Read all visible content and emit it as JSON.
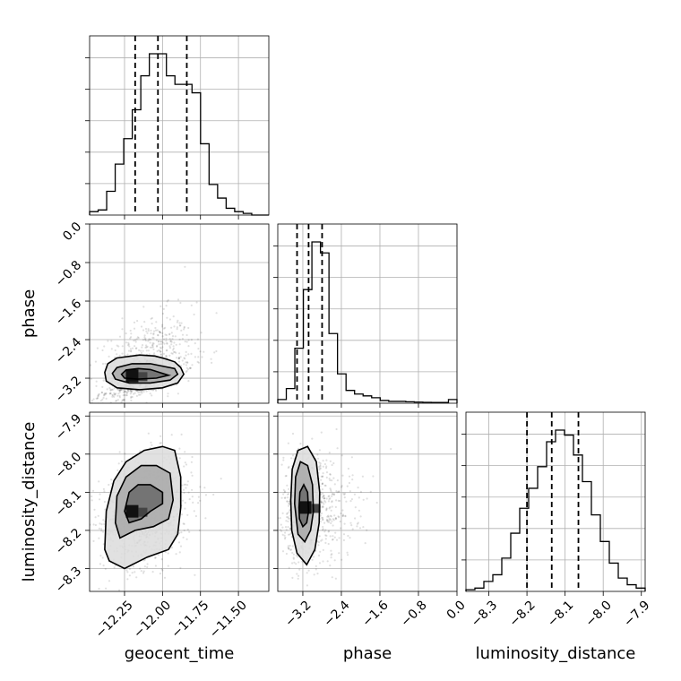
{
  "chart_data": {
    "type": "corner",
    "parameters": [
      "geocent_time",
      "phase",
      "luminosity_distance"
    ],
    "axes": {
      "geocent_time": {
        "label": "geocent_time",
        "range": [
          -12.48,
          -11.3
        ],
        "ticks": [
          -12.25,
          -12.0,
          -11.75,
          -11.5
        ],
        "tick_labels": [
          "−12.25",
          "−12.00",
          "−11.75",
          "−11.50"
        ],
        "quantiles": [
          -12.18,
          -12.03,
          -11.84
        ]
      },
      "phase": {
        "label": "phase",
        "range": [
          -3.72,
          0.0
        ],
        "ticks": [
          -3.2,
          -2.4,
          -1.6,
          -0.8,
          0.0
        ],
        "tick_labels": [
          "−3.2",
          "−2.4",
          "−1.6",
          "−0.8",
          "0.0"
        ],
        "quantiles": [
          -3.32,
          -3.08,
          -2.8
        ]
      },
      "luminosity_distance": {
        "label": "luminosity_distance",
        "range": [
          -8.36,
          -7.89
        ],
        "ticks": [
          -8.3,
          -8.2,
          -8.1,
          -8.0,
          -7.9
        ],
        "tick_labels": [
          "−8.3",
          "−8.2",
          "−8.1",
          "−8.0",
          "−7.9"
        ],
        "tick_labels_row": [
          "−8.3",
          "−8.2",
          "−8.1",
          "−8.0",
          "−7.9"
        ],
        "quantiles": [
          -8.2,
          -8.135,
          -8.065
        ]
      }
    },
    "histograms": {
      "geocent_time": {
        "bin_edges_range": [
          -12.48,
          -11.3
        ],
        "counts": [
          0.02,
          0.03,
          0.14,
          0.3,
          0.45,
          0.62,
          0.82,
          0.95,
          0.95,
          0.82,
          0.77,
          0.77,
          0.72,
          0.42,
          0.18,
          0.1,
          0.04,
          0.02,
          0.01,
          0,
          0
        ]
      },
      "phase": {
        "bin_edges_range": [
          -3.72,
          0.0
        ],
        "counts": [
          0.02,
          0.08,
          0.3,
          0.62,
          0.88,
          0.82,
          0.38,
          0.16,
          0.07,
          0.05,
          0.04,
          0.03,
          0.015,
          0.01,
          0.01,
          0.008,
          0.006,
          0.005,
          0.004,
          0.004,
          0.02
        ]
      },
      "luminosity_distance": {
        "bin_edges_range": [
          -8.36,
          -7.89
        ],
        "counts": [
          0.01,
          0.02,
          0.06,
          0.1,
          0.2,
          0.35,
          0.5,
          0.62,
          0.75,
          0.9,
          0.97,
          0.94,
          0.82,
          0.66,
          0.46,
          0.3,
          0.17,
          0.08,
          0.04,
          0.02
        ]
      }
    },
    "pairs": [
      {
        "x": "geocent_time",
        "y": "phase",
        "mode": [
          -12.2,
          -3.15
        ],
        "contours": [
          [
            [
              -12.38,
              -3.08
            ],
            [
              -12.36,
              -2.9
            ],
            [
              -12.3,
              -2.78
            ],
            [
              -12.15,
              -2.72
            ],
            [
              -12.05,
              -2.74
            ],
            [
              -11.98,
              -2.8
            ],
            [
              -11.92,
              -2.86
            ],
            [
              -11.88,
              -2.98
            ],
            [
              -11.86,
              -3.12
            ],
            [
              -11.9,
              -3.3
            ],
            [
              -12.0,
              -3.4
            ],
            [
              -12.15,
              -3.44
            ],
            [
              -12.3,
              -3.4
            ],
            [
              -12.37,
              -3.26
            ],
            [
              -12.38,
              -3.08
            ]
          ],
          [
            [
              -12.33,
              -3.1
            ],
            [
              -12.3,
              -2.98
            ],
            [
              -12.2,
              -2.9
            ],
            [
              -12.08,
              -2.9
            ],
            [
              -12.0,
              -2.95
            ],
            [
              -11.92,
              -3.0
            ],
            [
              -11.9,
              -3.12
            ],
            [
              -11.95,
              -3.24
            ],
            [
              -12.08,
              -3.3
            ],
            [
              -12.22,
              -3.3
            ],
            [
              -12.31,
              -3.22
            ],
            [
              -12.33,
              -3.1
            ]
          ],
          [
            [
              -12.27,
              -3.12
            ],
            [
              -12.24,
              -3.03
            ],
            [
              -12.16,
              -3.0
            ],
            [
              -12.08,
              -3.02
            ],
            [
              -12.02,
              -3.08
            ],
            [
              -11.96,
              -3.14
            ],
            [
              -12.04,
              -3.2
            ],
            [
              -12.16,
              -3.22
            ],
            [
              -12.25,
              -3.2
            ],
            [
              -12.27,
              -3.12
            ]
          ]
        ]
      },
      {
        "x": "geocent_time",
        "y": "luminosity_distance",
        "mode": [
          -12.2,
          -8.15
        ],
        "contours": [
          [
            [
              -12.38,
              -8.25
            ],
            [
              -12.37,
              -8.15
            ],
            [
              -12.32,
              -8.07
            ],
            [
              -12.24,
              -8.02
            ],
            [
              -12.12,
              -7.99
            ],
            [
              -12.0,
              -7.98
            ],
            [
              -11.92,
              -7.99
            ],
            [
              -11.88,
              -8.06
            ],
            [
              -11.88,
              -8.14
            ],
            [
              -11.9,
              -8.21
            ],
            [
              -11.96,
              -8.25
            ],
            [
              -12.1,
              -8.27
            ],
            [
              -12.25,
              -8.3
            ],
            [
              -12.35,
              -8.28
            ],
            [
              -12.38,
              -8.25
            ]
          ],
          [
            [
              -12.31,
              -8.18
            ],
            [
              -12.3,
              -8.11
            ],
            [
              -12.24,
              -8.06
            ],
            [
              -12.14,
              -8.03
            ],
            [
              -12.04,
              -8.03
            ],
            [
              -11.95,
              -8.05
            ],
            [
              -11.93,
              -8.12
            ],
            [
              -11.96,
              -8.17
            ],
            [
              -12.06,
              -8.19
            ],
            [
              -12.18,
              -8.2
            ],
            [
              -12.28,
              -8.22
            ],
            [
              -12.31,
              -8.18
            ]
          ],
          [
            [
              -12.25,
              -8.15
            ],
            [
              -12.22,
              -8.1
            ],
            [
              -12.16,
              -8.08
            ],
            [
              -12.08,
              -8.08
            ],
            [
              -12.0,
              -8.1
            ],
            [
              -12.0,
              -8.13
            ],
            [
              -12.08,
              -8.15
            ],
            [
              -12.14,
              -8.17
            ],
            [
              -12.22,
              -8.18
            ],
            [
              -12.25,
              -8.15
            ]
          ]
        ]
      },
      {
        "x": "phase",
        "y": "luminosity_distance",
        "mode": [
          -3.15,
          -8.14
        ],
        "contours": [
          [
            [
              -3.45,
              -8.12
            ],
            [
              -3.42,
              -8.04
            ],
            [
              -3.3,
              -7.99
            ],
            [
              -3.1,
              -7.98
            ],
            [
              -2.92,
              -8.02
            ],
            [
              -2.85,
              -8.1
            ],
            [
              -2.86,
              -8.18
            ],
            [
              -2.95,
              -8.25
            ],
            [
              -3.12,
              -8.29
            ],
            [
              -3.32,
              -8.26
            ],
            [
              -3.43,
              -8.2
            ],
            [
              -3.45,
              -8.12
            ]
          ],
          [
            [
              -3.37,
              -8.13
            ],
            [
              -3.35,
              -8.06
            ],
            [
              -3.25,
              -8.02
            ],
            [
              -3.1,
              -8.03
            ],
            [
              -3.0,
              -8.08
            ],
            [
              -2.98,
              -8.15
            ],
            [
              -3.04,
              -8.2
            ],
            [
              -3.16,
              -8.23
            ],
            [
              -3.3,
              -8.21
            ],
            [
              -3.37,
              -8.13
            ]
          ],
          [
            [
              -3.28,
              -8.14
            ],
            [
              -3.26,
              -8.1
            ],
            [
              -3.18,
              -8.08
            ],
            [
              -3.1,
              -8.1
            ],
            [
              -3.08,
              -8.15
            ],
            [
              -3.12,
              -8.18
            ],
            [
              -3.2,
              -8.19
            ],
            [
              -3.27,
              -8.17
            ],
            [
              -3.28,
              -8.14
            ]
          ]
        ]
      }
    ]
  }
}
